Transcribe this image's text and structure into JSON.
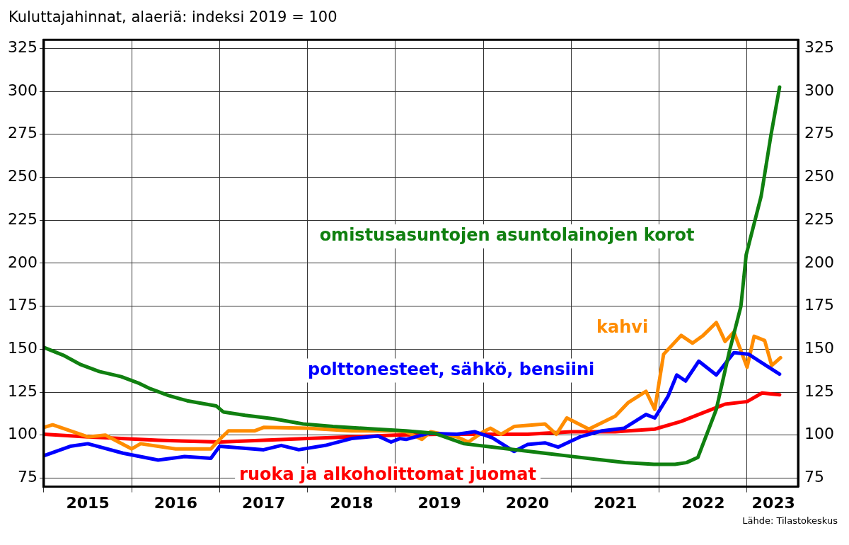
{
  "chart_data": {
    "type": "line",
    "title": "Kuluttajahinnat, alaeriä: indeksi 2019 = 100",
    "annotations": [
      "Lähde: Tilastokeskus"
    ],
    "xlim": [
      2015,
      2023.58
    ],
    "xticks": [
      {
        "value": 2015,
        "label": null
      },
      {
        "value": 2015.5,
        "label": "2015"
      },
      {
        "value": 2016,
        "label": null
      },
      {
        "value": 2016.5,
        "label": "2016"
      },
      {
        "value": 2017,
        "label": null
      },
      {
        "value": 2017.5,
        "label": "2017"
      },
      {
        "value": 2018,
        "label": null
      },
      {
        "value": 2018.5,
        "label": "2018"
      },
      {
        "value": 2019,
        "label": null
      },
      {
        "value": 2019.5,
        "label": "2019"
      },
      {
        "value": 2020,
        "label": null
      },
      {
        "value": 2020.5,
        "label": "2020"
      },
      {
        "value": 2021,
        "label": null
      },
      {
        "value": 2021.5,
        "label": "2021"
      },
      {
        "value": 2022,
        "label": null
      },
      {
        "value": 2022.5,
        "label": "2022"
      },
      {
        "value": 2023,
        "label": null
      },
      {
        "value": 2023.3,
        "label": "2023"
      }
    ],
    "ylim": [
      70,
      330
    ],
    "yticks": [
      75,
      100,
      125,
      150,
      175,
      200,
      225,
      250,
      275,
      300,
      325
    ],
    "y2lim": [
      70,
      330
    ],
    "y2ticks": [
      75,
      100,
      125,
      150,
      175,
      200,
      225,
      250,
      275,
      300,
      325
    ],
    "grid": true,
    "legend": false,
    "marker": "none",
    "line_style": "solid",
    "series": [
      {
        "name": "omistusasuntojen asuntolainojen korot",
        "color": "#108010",
        "x": [
          2015.0,
          2015.22,
          2015.42,
          2015.63,
          2015.88,
          2016.09,
          2016.21,
          2016.42,
          2016.63,
          2016.96,
          2017.04,
          2017.29,
          2017.62,
          2017.95,
          2018.29,
          2018.78,
          2019.12,
          2019.45,
          2019.78,
          2020.11,
          2020.61,
          2020.94,
          2021.27,
          2021.61,
          2021.94,
          2022.18,
          2022.31,
          2022.44,
          2022.65,
          2022.8,
          2022.93,
          2022.99,
          2023.16,
          2023.27,
          2023.37
        ],
        "values": [
          151,
          146.5,
          141,
          137,
          134,
          130,
          127,
          123,
          120,
          117,
          113.5,
          111.5,
          109.5,
          106.5,
          105,
          103.5,
          102.5,
          101,
          95,
          93,
          90,
          88,
          86,
          84,
          83,
          83,
          84,
          87,
          115,
          149,
          175,
          205,
          239,
          274,
          302.5
        ]
      },
      {
        "name": "polttonesteet, sähkö, bensiini",
        "color": "#0000ff",
        "x": [
          2015.0,
          2015.3,
          2015.5,
          2015.9,
          2016.3,
          2016.6,
          2016.9,
          2017.0,
          2017.5,
          2017.7,
          2017.9,
          2018.2,
          2018.5,
          2018.8,
          2018.95,
          2019.05,
          2019.12,
          2019.37,
          2019.7,
          2019.9,
          2020.1,
          2020.35,
          2020.5,
          2020.7,
          2020.85,
          2021.1,
          2021.35,
          2021.6,
          2021.85,
          2021.95,
          2022.1,
          2022.2,
          2022.3,
          2022.45,
          2022.65,
          2022.85,
          2023.02,
          2023.2,
          2023.37
        ],
        "values": [
          88,
          93.5,
          95,
          89.5,
          85.5,
          87.5,
          86.5,
          93.5,
          91.5,
          94,
          91.5,
          94,
          98,
          99.5,
          96,
          98,
          97.5,
          101,
          100.5,
          102,
          98.5,
          90.5,
          94.5,
          95.5,
          93,
          99,
          102.5,
          104,
          112,
          110,
          122.5,
          135,
          131.5,
          143,
          135,
          148,
          147,
          141,
          135.5
        ]
      },
      {
        "name": "kahvi",
        "color": "#ff8c00",
        "x": [
          2015.0,
          2015.1,
          2015.3,
          2015.5,
          2015.7,
          2016.0,
          2016.1,
          2016.5,
          2016.9,
          2017.0,
          2017.1,
          2017.4,
          2017.5,
          2018.0,
          2018.5,
          2019.0,
          2019.12,
          2019.3,
          2019.4,
          2019.7,
          2019.83,
          2020.0,
          2020.08,
          2020.2,
          2020.35,
          2020.7,
          2020.83,
          2020.95,
          2021.2,
          2021.5,
          2021.65,
          2021.85,
          2021.95,
          2022.05,
          2022.25,
          2022.38,
          2022.5,
          2022.65,
          2022.75,
          2022.85,
          2023.0,
          2023.08,
          2023.2,
          2023.28,
          2023.38
        ],
        "values": [
          104.5,
          106,
          102.5,
          99,
          100,
          92,
          95,
          92,
          92,
          97.5,
          102.5,
          102.5,
          104.5,
          104,
          102.5,
          102.5,
          102,
          97.5,
          102,
          99,
          96,
          102,
          104,
          100.5,
          105,
          106.5,
          100.5,
          110,
          103.5,
          111,
          119,
          125.5,
          115,
          147,
          158,
          153.5,
          158,
          165.5,
          154.5,
          160,
          139.5,
          157.5,
          155,
          140.5,
          145
        ]
      },
      {
        "name": "ruoka ja alkoholittomat juomat",
        "color": "#ff0000",
        "x": [
          2015.0,
          2015.5,
          2016.3,
          2017.0,
          2017.5,
          2018.0,
          2018.5,
          2019.0,
          2019.5,
          2020.5,
          2021.0,
          2021.5,
          2021.95,
          2022.25,
          2022.5,
          2022.75,
          2023.0,
          2023.17,
          2023.37
        ],
        "values": [
          100.5,
          99,
          97,
          96,
          97,
          98,
          99,
          100,
          100.5,
          100.5,
          102,
          102,
          103.5,
          108,
          113,
          118,
          119.5,
          124.5,
          123.5
        ]
      }
    ]
  }
}
